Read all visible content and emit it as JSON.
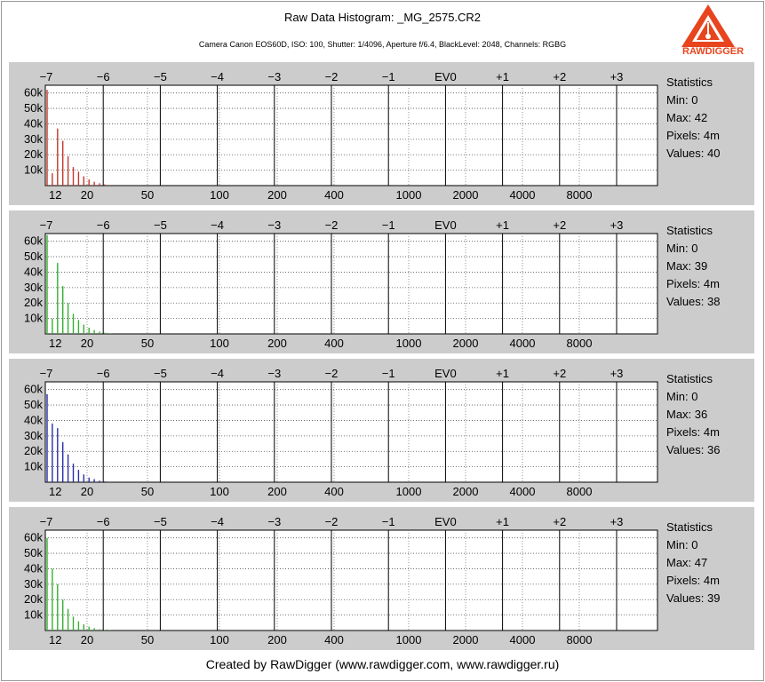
{
  "header": {
    "title": "Raw Data Histogram: _MG_2575.CR2",
    "subtitle": "Camera Canon EOS60D, ISO: 100, Shutter: 1/4096, Aperture f/6.4, BlackLevel: 2048, Channels: RGBG",
    "logo_text": "RAWDIGGER"
  },
  "footer": {
    "text": "Created by RawDigger (www.rawdigger.com, www.rawdigger.ru)"
  },
  "axes": {
    "ev_ticks": [
      "−7",
      "−6",
      "−5",
      "−4",
      "−3",
      "−2",
      "−1",
      "EV0",
      "+1",
      "+2",
      "+3"
    ],
    "value_ticks": [
      "12",
      "20",
      "50",
      "100",
      "200",
      "400",
      "1000",
      "2000",
      "4000",
      "8000"
    ],
    "y_ticks": [
      "10k",
      "20k",
      "30k",
      "40k",
      "50k",
      "60k"
    ],
    "y_max": 65000
  },
  "stats_labels": {
    "title": "Statistics",
    "min": "Min:",
    "max": "Max:",
    "pixels": "Pixels:",
    "values": "Values:"
  },
  "chart_data": [
    {
      "type": "bar",
      "channel": "R",
      "color": "#c23a2c",
      "x": [
        12,
        13,
        14,
        15,
        16,
        17,
        18,
        19,
        20,
        21,
        22,
        23,
        24
      ],
      "values": [
        62000,
        8000,
        37000,
        29000,
        19000,
        12000,
        9000,
        6000,
        4000,
        2500,
        1500,
        800,
        400
      ],
      "stats": {
        "min": "0",
        "max": "42",
        "pixels": "4m",
        "values": "40"
      }
    },
    {
      "type": "bar",
      "channel": "G",
      "color": "#35b031",
      "x": [
        12,
        13,
        14,
        15,
        16,
        17,
        18,
        19,
        20,
        21,
        22,
        23,
        24
      ],
      "values": [
        64000,
        10000,
        46000,
        31000,
        20000,
        13000,
        9000,
        6000,
        4000,
        2500,
        1500,
        800,
        400
      ],
      "stats": {
        "min": "0",
        "max": "39",
        "pixels": "4m",
        "values": "38"
      }
    },
    {
      "type": "bar",
      "channel": "B",
      "color": "#2a2fa8",
      "x": [
        12,
        13,
        14,
        15,
        16,
        17,
        18,
        19,
        20,
        21,
        22,
        23,
        24
      ],
      "values": [
        57000,
        38000,
        35000,
        26000,
        18000,
        12000,
        8000,
        5000,
        3000,
        2000,
        1000,
        500,
        200
      ],
      "stats": {
        "min": "0",
        "max": "36",
        "pixels": "4m",
        "values": "36"
      }
    },
    {
      "type": "bar",
      "channel": "G2",
      "color": "#35b031",
      "x": [
        12,
        13,
        14,
        15,
        16,
        17,
        18,
        19,
        20,
        21,
        22,
        23,
        24
      ],
      "values": [
        60000,
        40000,
        30000,
        20000,
        14000,
        9000,
        6000,
        4000,
        2500,
        1500,
        800,
        400,
        200
      ],
      "stats": {
        "min": "0",
        "max": "47",
        "pixels": "4m",
        "values": "39"
      }
    }
  ]
}
